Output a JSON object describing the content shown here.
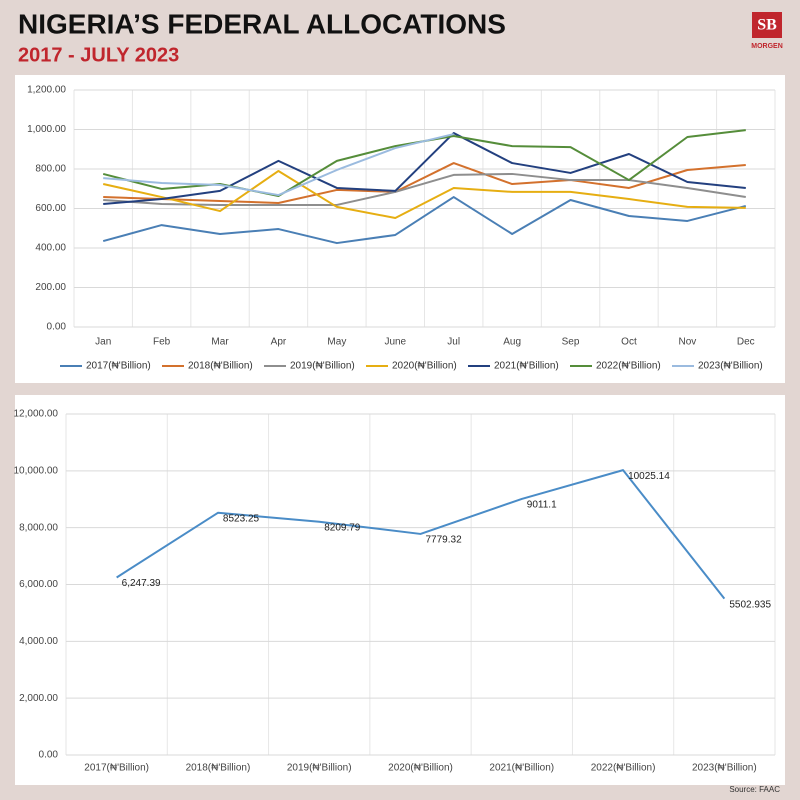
{
  "header": {
    "title": "NIGERIA’S FEDERAL ALLOCATIONS",
    "subtitle": "2017 - JULY 2023",
    "logo": "SB",
    "logo_sub": "MORGEN"
  },
  "source": "Source: FAAC",
  "chart_data": [
    {
      "type": "line",
      "categories": [
        "Jan",
        "Feb",
        "Mar",
        "Apr",
        "May",
        "June",
        "Jul",
        "Aug",
        "Sep",
        "Oct",
        "Nov",
        "Dec"
      ],
      "ylim": [
        0,
        1200
      ],
      "yticks": [
        {
          "value": 0,
          "label": "0.00"
        },
        {
          "value": 200,
          "label": "200.00"
        },
        {
          "value": 400,
          "label": "400.00"
        },
        {
          "value": 600,
          "label": "600.00"
        },
        {
          "value": 800,
          "label": "800.00"
        },
        {
          "value": 1000,
          "label": "1,000.00"
        },
        {
          "value": 1200,
          "label": "1,200.00"
        }
      ],
      "grid": true,
      "legend": "bottom",
      "series": [
        {
          "name": "2017(₦'Billion)",
          "color": "#4a7fb5",
          "values": [
            435,
            516,
            471,
            496,
            425,
            466,
            658,
            471,
            643,
            562,
            537,
            613
          ]
        },
        {
          "name": "2018(₦'Billion)",
          "color": "#d3712d",
          "values": [
            658,
            648,
            638,
            628,
            694,
            684,
            830,
            724,
            744,
            704,
            795,
            820
          ]
        },
        {
          "name": "2019(₦'Billion)",
          "color": "#8e8e8e",
          "values": [
            643,
            623,
            618,
            618,
            618,
            684,
            770,
            775,
            744,
            744,
            704,
            658
          ]
        },
        {
          "name": "2020(₦'Billion)",
          "color": "#e6ae12",
          "values": [
            724,
            658,
            587,
            790,
            608,
            552,
            704,
            684,
            684,
            648,
            608,
            603
          ]
        },
        {
          "name": "2021(₦'Billion)",
          "color": "#23407f",
          "values": [
            623,
            648,
            689,
            841,
            704,
            689,
            982,
            830,
            780,
            876,
            734,
            704
          ]
        },
        {
          "name": "2022(₦'Billion)",
          "color": "#558d3a",
          "values": [
            775,
            699,
            724,
            663,
            841,
            916,
            967,
            916,
            911,
            744,
            962,
            997
          ]
        },
        {
          "name": "2023(₦'Billion)",
          "color": "#9bbbdf",
          "values": [
            754,
            729,
            719,
            668,
            795,
            906,
            977,
            null,
            null,
            null,
            null,
            null
          ]
        }
      ]
    },
    {
      "type": "line",
      "categories": [
        "2017(₦'Billion)",
        "2018(₦'Billion)",
        "2019(₦'Billion)",
        "2020(₦'Billion)",
        "2021(₦'Billion)",
        "2022(₦'Billion)",
        "2023(₦'Billion)"
      ],
      "ylim": [
        0,
        12000
      ],
      "yticks": [
        {
          "value": 0,
          "label": "0.00"
        },
        {
          "value": 2000,
          "label": "2,000.00"
        },
        {
          "value": 4000,
          "label": "4,000.00"
        },
        {
          "value": 6000,
          "label": "6,000.00"
        },
        {
          "value": 8000,
          "label": "8,000.00"
        },
        {
          "value": 10000,
          "label": "10,000.00"
        },
        {
          "value": 12000,
          "label": "12,000.00"
        }
      ],
      "grid": true,
      "series": [
        {
          "name": null,
          "color": "#4a8cc7",
          "values": [
            6247.39,
            8523.25,
            8209.79,
            7779.32,
            9011.1,
            10025.14,
            5502.935
          ],
          "value_labels": [
            "6,247.39",
            "8523.25",
            "8209.79",
            "7779.32",
            "9011.1",
            "10025.14",
            "5502.935"
          ]
        }
      ]
    }
  ]
}
